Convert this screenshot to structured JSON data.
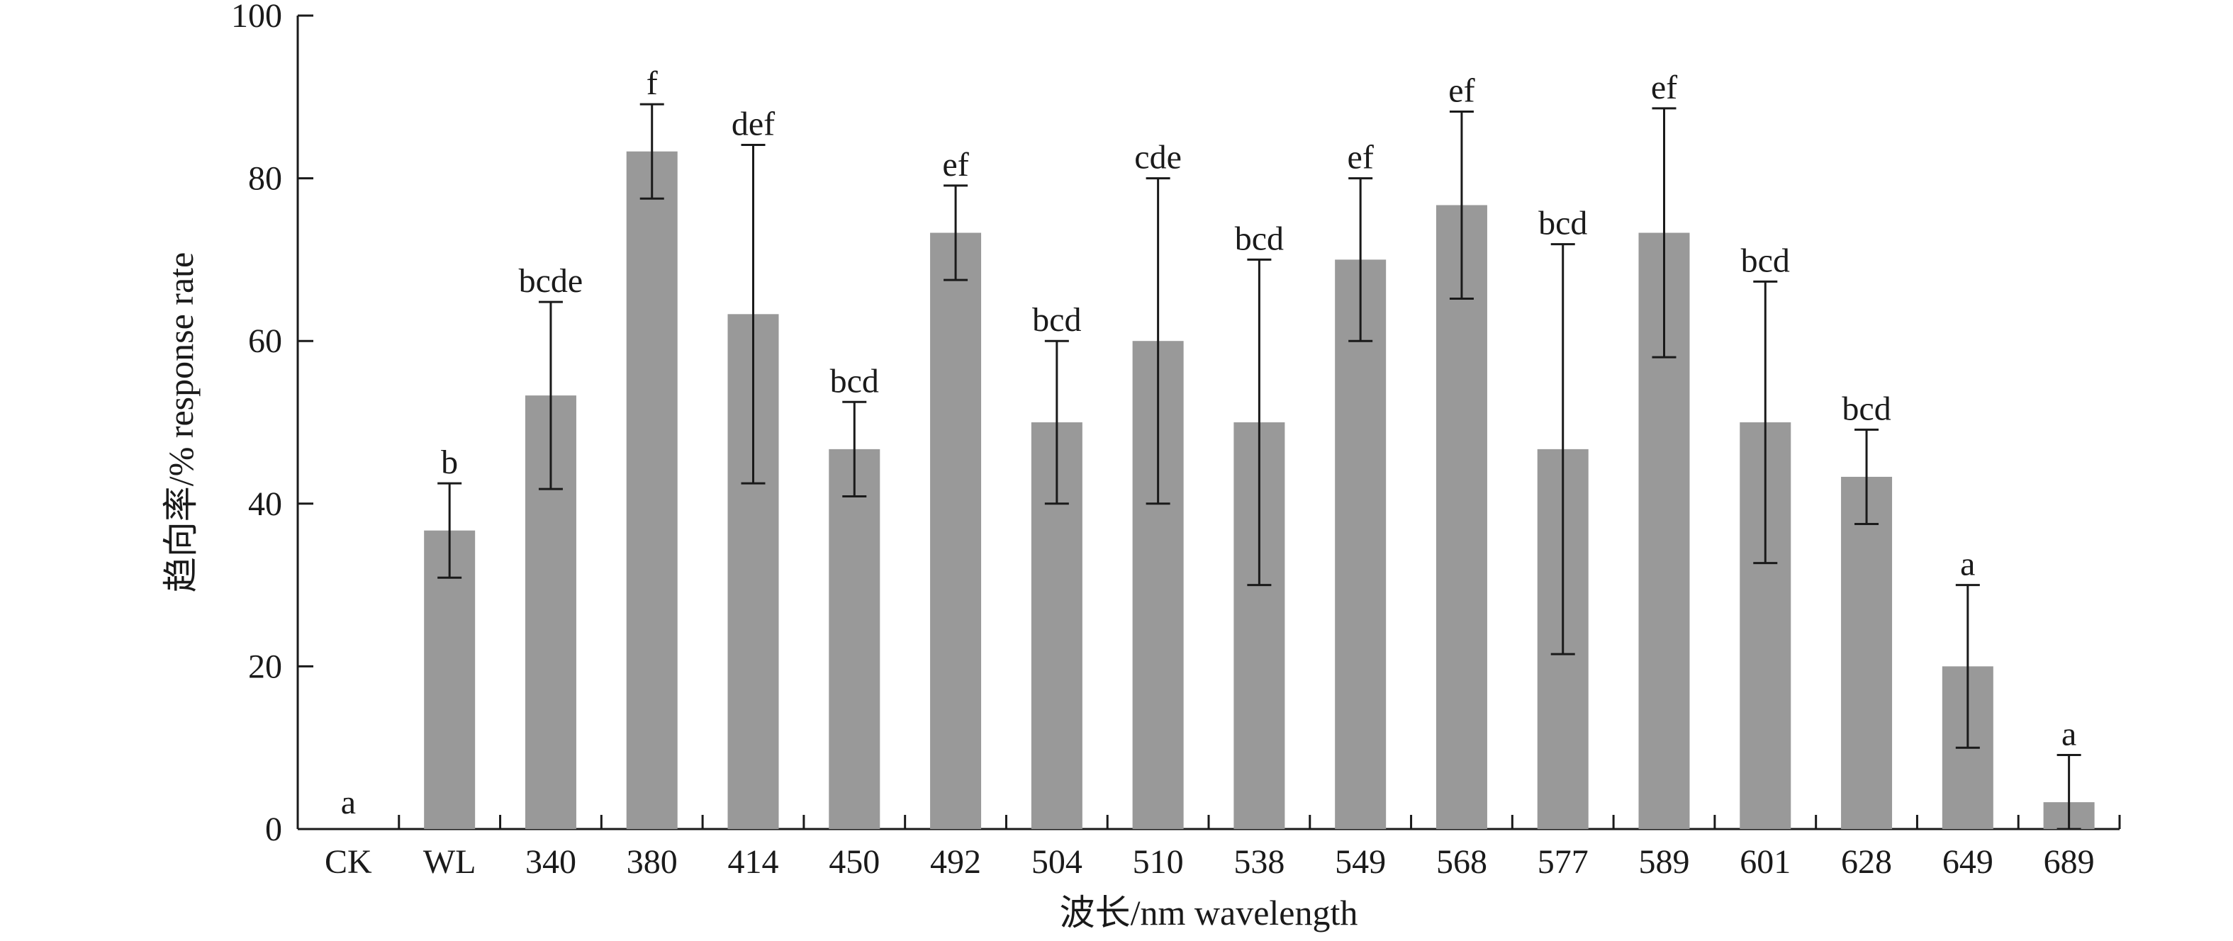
{
  "chart_data": {
    "type": "bar",
    "categories": [
      "CK",
      "WL",
      "340",
      "380",
      "414",
      "450",
      "492",
      "504",
      "510",
      "538",
      "549",
      "568",
      "577",
      "589",
      "601",
      "628",
      "649",
      "689"
    ],
    "values": [
      0,
      36.7,
      53.3,
      83.3,
      63.3,
      46.7,
      73.3,
      50.0,
      60.0,
      50.0,
      70.0,
      76.7,
      46.7,
      73.3,
      50.0,
      43.3,
      20.0,
      3.3
    ],
    "errors": [
      0,
      5.8,
      11.5,
      5.8,
      20.8,
      5.8,
      5.8,
      10.0,
      20.0,
      20.0,
      10.0,
      11.5,
      25.2,
      15.3,
      17.3,
      5.8,
      10.0,
      5.8
    ],
    "significance_letters": [
      "a",
      "b",
      "bcde",
      "f",
      "def",
      "bcd",
      "ef",
      "bcd",
      "cde",
      "bcd",
      "ef",
      "ef",
      "bcd",
      "ef",
      "bcd",
      "bcd",
      "a",
      "a"
    ],
    "xlabel": "波长/nm wavelength",
    "ylabel": "趋向率/% response rate",
    "ylim": [
      0,
      100
    ],
    "yticks": [
      0,
      20,
      40,
      60,
      80,
      100
    ],
    "grid": false,
    "colors": {
      "bar": "#999999",
      "axis": "#1a1a1a"
    }
  }
}
